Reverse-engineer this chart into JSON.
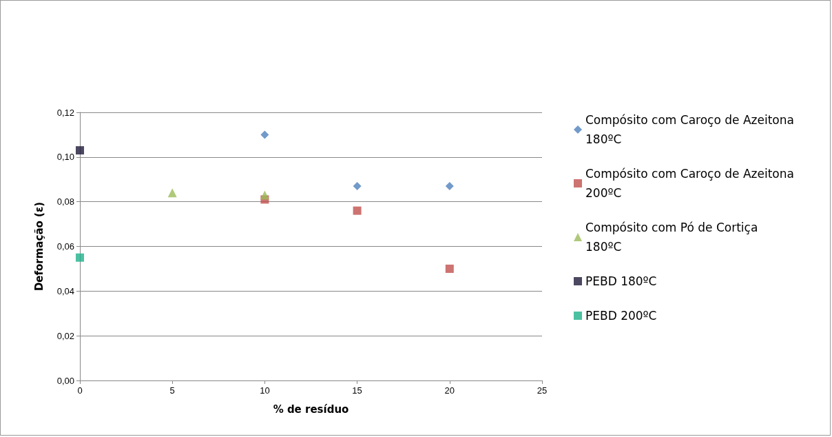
{
  "chart_data": {
    "type": "scatter",
    "xlabel": "% de resíduo",
    "ylabel": "Deformação (ε)",
    "xlim": [
      0,
      25
    ],
    "xticks": [
      0,
      5,
      10,
      15,
      20,
      25
    ],
    "ylim": [
      0,
      0.12
    ],
    "yticks": [
      {
        "value": 0,
        "label": "0,00"
      },
      {
        "value": 0.02,
        "label": "0,02"
      },
      {
        "value": 0.04,
        "label": "0,04"
      },
      {
        "value": 0.06,
        "label": "0,06"
      },
      {
        "value": 0.08,
        "label": "0,08"
      },
      {
        "value": 0.1,
        "label": "0,10"
      },
      {
        "value": 0.12,
        "label": "0,12"
      }
    ],
    "grid": "y",
    "legend": "right",
    "series": [
      {
        "name": "Compósito com Caroço de Azeitona 180ºC",
        "color": "#4f81bd",
        "marker": "diamond",
        "x": [
          10,
          15,
          20
        ],
        "values": [
          0.11,
          0.087,
          0.087
        ]
      },
      {
        "name": "Compósito com Caroço de Azeitona 200ºC",
        "color": "#c0504d",
        "marker": "square",
        "x": [
          10,
          15,
          20
        ],
        "values": [
          0.081,
          0.076,
          0.05
        ]
      },
      {
        "name": "Compósito com Pó de Cortiça 180ºC",
        "color": "#9bbb59",
        "marker": "triangle",
        "x": [
          5,
          10
        ],
        "values": [
          0.084,
          0.083
        ]
      },
      {
        "name": "PEBD 180ºC",
        "color": "#1f1a3a",
        "marker": "square",
        "x": [
          0
        ],
        "values": [
          0.103
        ]
      },
      {
        "name": "PEBD 200ºC",
        "color": "#1fb28a",
        "marker": "square",
        "x": [
          0
        ],
        "values": [
          0.055
        ]
      }
    ]
  }
}
